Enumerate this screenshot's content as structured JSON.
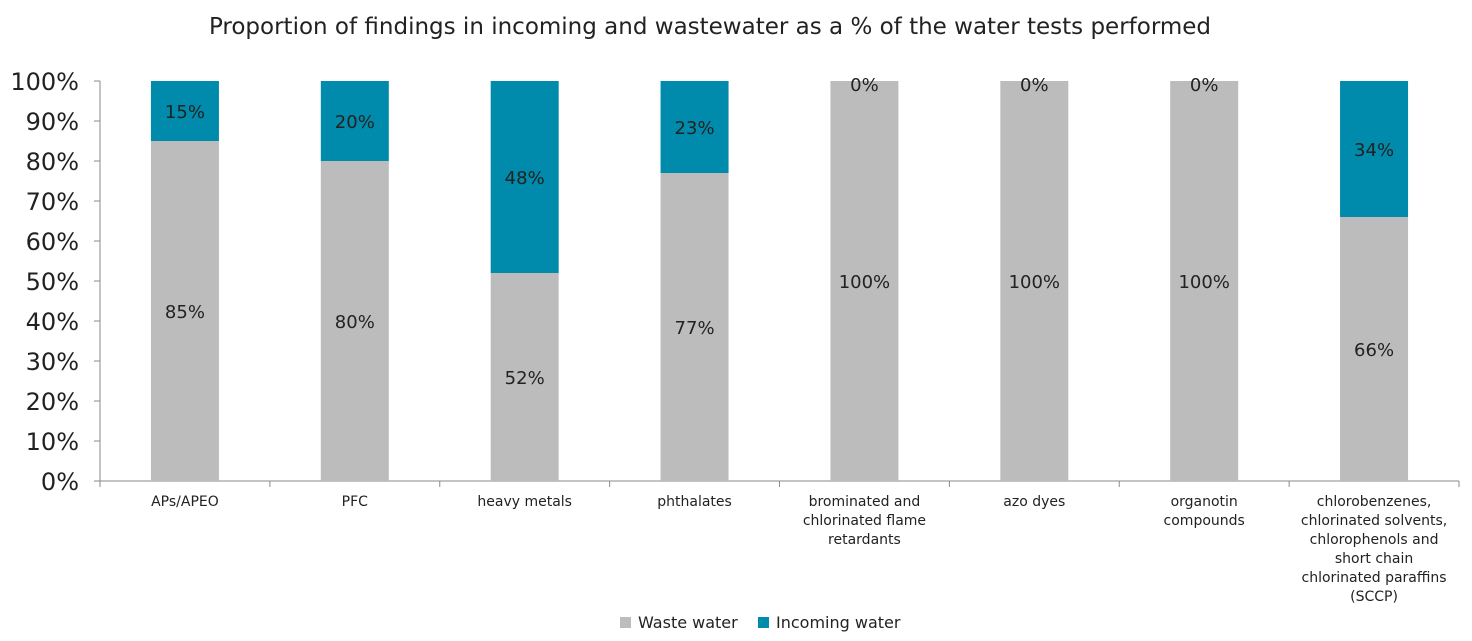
{
  "chart_data": {
    "type": "bar",
    "stacked": true,
    "title": "Proportion of findings in incoming and wastewater as a % of the water tests performed",
    "xlabel": "",
    "ylabel": "",
    "ylim": [
      0,
      100
    ],
    "y_ticks": [
      "0%",
      "10%",
      "20%",
      "30%",
      "40%",
      "50%",
      "60%",
      "70%",
      "80%",
      "90%",
      "100%"
    ],
    "grid": false,
    "legend_position": "bottom",
    "categories": [
      [
        "APs/APEO"
      ],
      [
        "PFC"
      ],
      [
        "heavy metals"
      ],
      [
        "phthalates"
      ],
      [
        "brominated and",
        "chlorinated flame",
        "retardants"
      ],
      [
        "azo dyes"
      ],
      [
        "organotin",
        "compounds"
      ],
      [
        "chlorobenzenes,",
        "chlorinated solvents,",
        "chlorophenols and",
        "short chain",
        "chlorinated paraffins",
        "(SCCP)"
      ]
    ],
    "series": [
      {
        "name": "Waste water",
        "color": "#bcbcbc",
        "values": [
          85,
          80,
          52,
          77,
          100,
          100,
          100,
          66
        ],
        "labels": [
          "85%",
          "80%",
          "52%",
          "77%",
          "100%",
          "100%",
          "100%",
          "66%"
        ]
      },
      {
        "name": "Incoming water",
        "color": "#008aab",
        "values": [
          15,
          20,
          48,
          23,
          0,
          0,
          0,
          34
        ],
        "labels": [
          "15%",
          "20%",
          "48%",
          "23%",
          "0%",
          "0%",
          "0%",
          "34%"
        ]
      }
    ]
  }
}
